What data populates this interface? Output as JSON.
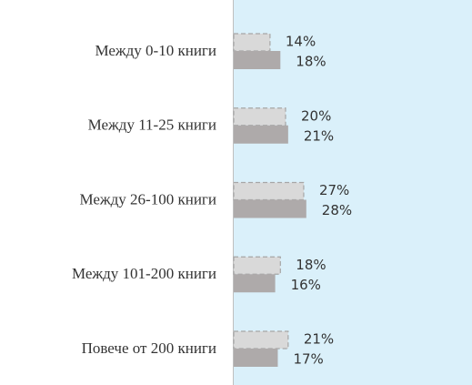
{
  "chart_data": {
    "type": "bar",
    "orientation": "horizontal",
    "categories": [
      "Между 0-10 книги",
      "Между 11-25 книги",
      "Между 26-100 книги",
      "Между 101-200 книги",
      "Повече от 200 книги"
    ],
    "series": [
      {
        "color": "#d9d9d9",
        "values": [
          14,
          20,
          27,
          18,
          21
        ],
        "value_labels": [
          "14%",
          "20%",
          "27%",
          "18%",
          "21%"
        ]
      },
      {
        "color": "#aeaaaa",
        "values": [
          18,
          21,
          28,
          16,
          17
        ],
        "value_labels": [
          "18%",
          "21%",
          "28%",
          "16%",
          "17%"
        ]
      }
    ],
    "plot_background": "#daf0fa"
  }
}
